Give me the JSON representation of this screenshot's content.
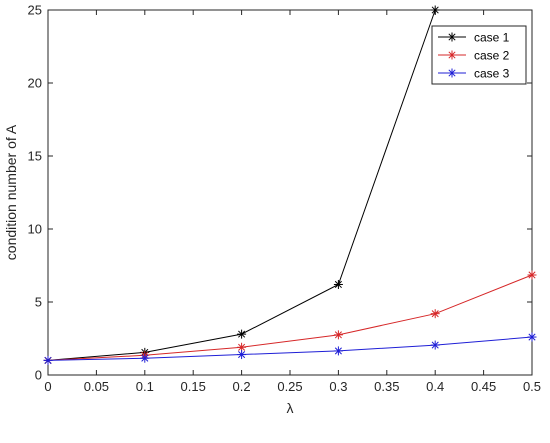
{
  "chart_data": {
    "type": "line",
    "title": "",
    "xlabel": "λ",
    "ylabel": "condition  number of A",
    "xlim": [
      0,
      0.5
    ],
    "ylim": [
      0,
      25
    ],
    "xticks": [
      0,
      0.05,
      0.1,
      0.15,
      0.2,
      0.25,
      0.3,
      0.35,
      0.4,
      0.45,
      0.5
    ],
    "xtick_labels": [
      "0",
      "0.05",
      "0.1",
      "0.15",
      "0.2",
      "0.25",
      "0.3",
      "0.35",
      "0.4",
      "0.45",
      "0.5"
    ],
    "yticks": [
      0,
      5,
      10,
      15,
      20,
      25
    ],
    "ytick_labels": [
      "0",
      "5",
      "10",
      "15",
      "20",
      "25"
    ],
    "grid": false,
    "legend_position": "top-right",
    "x": [
      0,
      0.1,
      0.2,
      0.3,
      0.4,
      0.5
    ],
    "series": [
      {
        "name": "case 1",
        "color": "#000000",
        "marker": "asterisk",
        "values": [
          1.0,
          1.55,
          2.8,
          6.2,
          25.0,
          null
        ]
      },
      {
        "name": "case 2",
        "color": "#d62728",
        "marker": "asterisk",
        "values": [
          1.0,
          1.35,
          1.9,
          2.75,
          4.2,
          6.85
        ]
      },
      {
        "name": "case 3",
        "color": "#1f1fd6",
        "marker": "asterisk",
        "values": [
          1.0,
          1.15,
          1.4,
          1.65,
          2.05,
          2.6
        ]
      }
    ]
  }
}
